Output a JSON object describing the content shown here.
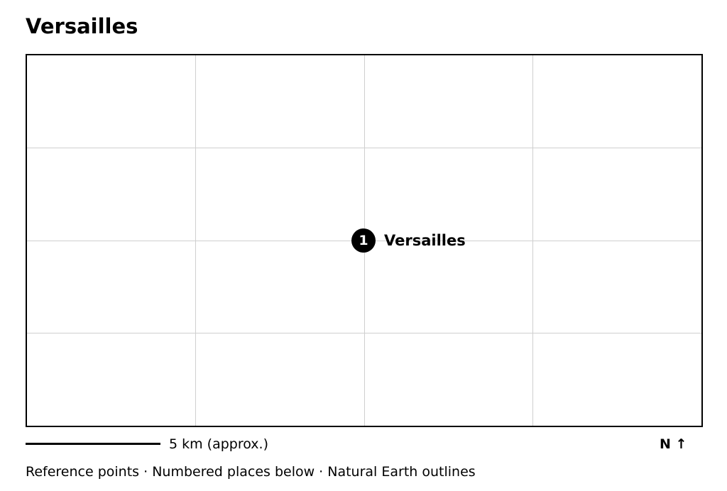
{
  "title": "Versailles",
  "places": [
    {
      "number": "1",
      "name": "Versailles"
    }
  ],
  "scale": {
    "label": "5 km (approx.)"
  },
  "north": {
    "label": "N ↑"
  },
  "caption": "Reference points · Numbered places below · Natural Earth outlines",
  "colors": {
    "background": "#ffffff",
    "frame": "#000000",
    "grid": "#cfcfcf",
    "marker": "#000000",
    "marker_text": "#ffffff"
  }
}
